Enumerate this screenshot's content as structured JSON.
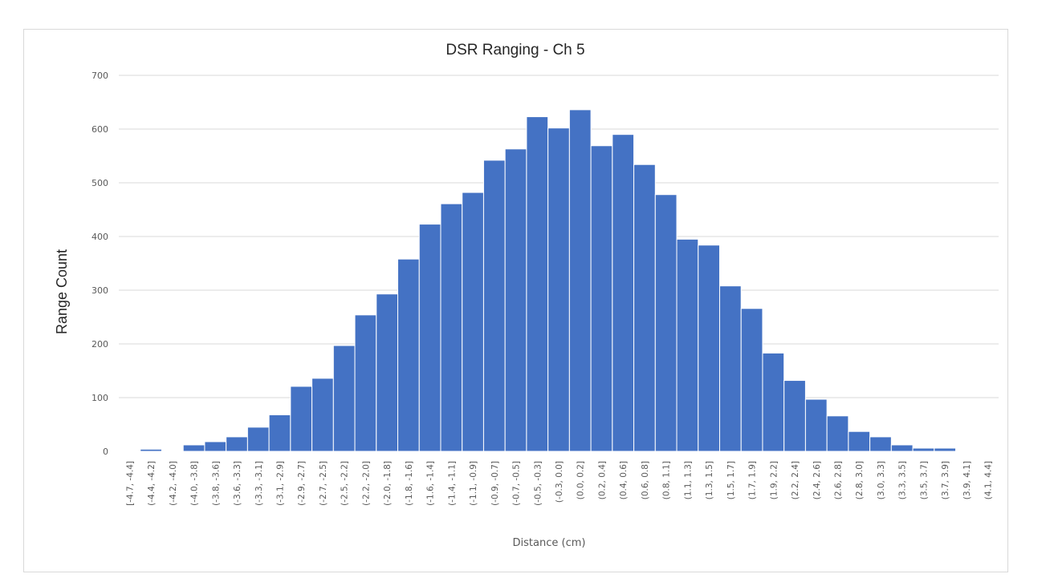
{
  "chart_data": {
    "type": "bar",
    "title": "DSR Ranging - Ch 5",
    "xlabel": "Distance (cm)",
    "ylabel": "Range Count",
    "ylim": [
      0,
      700
    ],
    "yticks": [
      0,
      100,
      200,
      300,
      400,
      500,
      600,
      700
    ],
    "grid": true,
    "legend": "none",
    "bar_color": "#4472c4",
    "categories": [
      "[-4.7, -4.4]",
      "(-4.4, -4.2]",
      "(-4.2, -4.0]",
      "(-4.0, -3.8]",
      "(-3.8, -3.6]",
      "(-3.6, -3.3]",
      "(-3.3, -3.1]",
      "(-3.1, -2.9]",
      "(-2.9, -2.7]",
      "(-2.7, -2.5]",
      "(-2.5, -2.2]",
      "(-2.2, -2.0]",
      "(-2.0, -1.8]",
      "(-1.8, -1.6]",
      "(-1.6, -1.4]",
      "(-1.4, -1.1]",
      "(-1.1, -0.9]",
      "(-0.9, -0.7]",
      "(-0.7, -0.5]",
      "(-0.5, -0.3]",
      "(-0.3, 0.0]",
      "(0.0, 0.2]",
      "(0.2, 0.4]",
      "(0.4, 0.6]",
      "(0.6, 0.8]",
      "(0.8, 1.1]",
      "(1.1, 1.3]",
      "(1.3, 1.5]",
      "(1.5, 1.7]",
      "(1.7, 1.9]",
      "(1.9, 2.2]",
      "(2.2, 2.4]",
      "(2.4, 2.6]",
      "(2.6, 2.8]",
      "(2.8, 3.0]",
      "(3.0, 3.3]",
      "(3.3, 3.5]",
      "(3.5, 3.7]",
      "(3.7, 3.9]",
      "(3.9, 4.1]",
      "(4.1, 4.4]"
    ],
    "values": [
      1,
      4,
      1,
      12,
      18,
      27,
      45,
      68,
      121,
      136,
      197,
      254,
      293,
      358,
      423,
      461,
      482,
      542,
      563,
      623,
      602,
      636,
      569,
      590,
      534,
      478,
      395,
      384,
      308,
      266,
      183,
      132,
      97,
      66,
      37,
      27,
      12,
      6,
      6,
      1,
      1
    ]
  }
}
